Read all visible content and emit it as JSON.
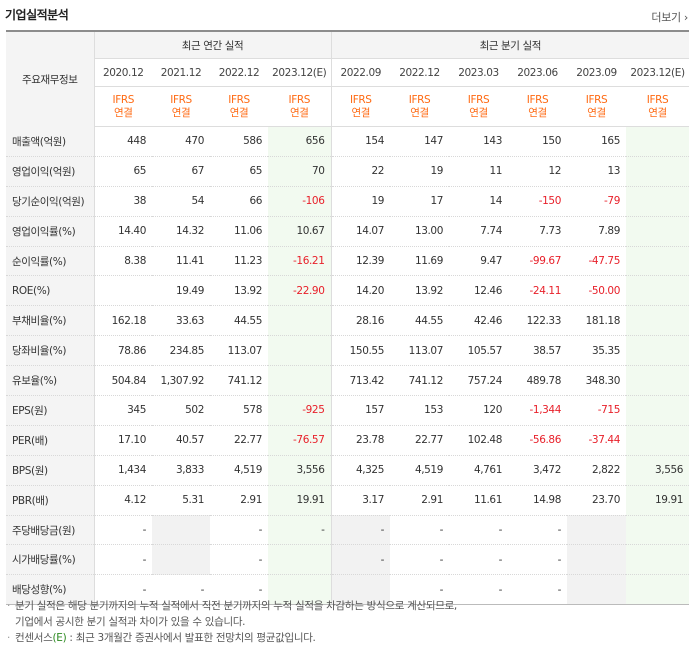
{
  "section_title": "기업실적분석",
  "more_label": "더보기",
  "more_icon": "chevron-right-icon",
  "row_header_label": "주요재무정보",
  "annual_header": "최근 연간 실적",
  "quarter_header": "최근 분기 실적",
  "periods": [
    {
      "label": "2020.12",
      "type": "annual"
    },
    {
      "label": "2021.12",
      "type": "annual"
    },
    {
      "label": "2022.12",
      "type": "annual"
    },
    {
      "label": "2023.12(E)",
      "type": "annual",
      "estimate": true
    },
    {
      "label": "2022.09",
      "type": "quarter"
    },
    {
      "label": "2022.12",
      "type": "quarter"
    },
    {
      "label": "2023.03",
      "type": "quarter"
    },
    {
      "label": "2023.06",
      "type": "quarter"
    },
    {
      "label": "2023.09",
      "type": "quarter"
    },
    {
      "label": "2023.12(E)",
      "type": "quarter",
      "estimate": true
    }
  ],
  "basis_line1": "IFRS",
  "basis_line2": "연결",
  "rows": [
    {
      "label": "매출액(억원)",
      "values": [
        "448",
        "470",
        "586",
        "656",
        "154",
        "147",
        "143",
        "150",
        "165",
        ""
      ]
    },
    {
      "label": "영업이익(억원)",
      "values": [
        "65",
        "67",
        "65",
        "70",
        "22",
        "19",
        "11",
        "12",
        "13",
        ""
      ]
    },
    {
      "label": "당기순이익(억원)",
      "values": [
        "38",
        "54",
        "66",
        "-106",
        "19",
        "17",
        "14",
        "-150",
        "-79",
        ""
      ]
    },
    {
      "label": "영업이익률(%)",
      "values": [
        "14.40",
        "14.32",
        "11.06",
        "10.67",
        "14.07",
        "13.00",
        "7.74",
        "7.73",
        "7.89",
        ""
      ]
    },
    {
      "label": "순이익률(%)",
      "values": [
        "8.38",
        "11.41",
        "11.23",
        "-16.21",
        "12.39",
        "11.69",
        "9.47",
        "-99.67",
        "-47.75",
        ""
      ]
    },
    {
      "label": "ROE(%)",
      "values": [
        "",
        "19.49",
        "13.92",
        "-22.90",
        "14.20",
        "13.92",
        "12.46",
        "-24.11",
        "-50.00",
        ""
      ]
    },
    {
      "label": "부채비율(%)",
      "values": [
        "162.18",
        "33.63",
        "44.55",
        "",
        "28.16",
        "44.55",
        "42.46",
        "122.33",
        "181.18",
        ""
      ]
    },
    {
      "label": "당좌비율(%)",
      "values": [
        "78.86",
        "234.85",
        "113.07",
        "",
        "150.55",
        "113.07",
        "105.57",
        "38.57",
        "35.35",
        ""
      ]
    },
    {
      "label": "유보율(%)",
      "values": [
        "504.84",
        "1,307.92",
        "741.12",
        "",
        "713.42",
        "741.12",
        "757.24",
        "489.78",
        "348.30",
        ""
      ]
    },
    {
      "label": "EPS(원)",
      "values": [
        "345",
        "502",
        "578",
        "-925",
        "157",
        "153",
        "120",
        "-1,344",
        "-715",
        ""
      ]
    },
    {
      "label": "PER(배)",
      "values": [
        "17.10",
        "40.57",
        "22.77",
        "-76.57",
        "23.78",
        "22.77",
        "102.48",
        "-56.86",
        "-37.44",
        ""
      ]
    },
    {
      "label": "BPS(원)",
      "values": [
        "1,434",
        "3,833",
        "4,519",
        "3,556",
        "4,325",
        "4,519",
        "4,761",
        "3,472",
        "2,822",
        "3,556"
      ]
    },
    {
      "label": "PBR(배)",
      "values": [
        "4.12",
        "5.31",
        "2.91",
        "19.91",
        "3.17",
        "2.91",
        "11.61",
        "14.98",
        "23.70",
        "19.91"
      ]
    },
    {
      "label": "주당배당금(원)",
      "values": [
        "-",
        "",
        "-",
        "-",
        "-",
        "-",
        "-",
        "-",
        "",
        ""
      ]
    },
    {
      "label": "시가배당률(%)",
      "values": [
        "-",
        "",
        "-",
        "",
        "-",
        "-",
        "-",
        "-",
        "",
        ""
      ]
    },
    {
      "label": "배당성향(%)",
      "values": [
        "-",
        "-",
        "-",
        "",
        "",
        "-",
        "-",
        "-",
        "",
        ""
      ]
    }
  ],
  "shaded_cells": [
    [
      13,
      1
    ],
    [
      14,
      1
    ],
    [
      13,
      8
    ],
    [
      14,
      8
    ],
    [
      15,
      8
    ],
    [
      15,
      4
    ],
    [
      13,
      4
    ],
    [
      14,
      4
    ]
  ],
  "notes": [
    "분기 실적은 해당 분기까지의 누적 실적에서 직전 분기까지의 누적 실적을 차감하는 방식으로 계산되므로,",
    "기업에서 공시한 분기 실적과 차이가 있을 수 있습니다.",
    "컨센서스(E) : 최근 3개월간 증권사에서 발표한 전망치의 평균값입니다."
  ],
  "notes_bullet": "·",
  "colors": {
    "basis_orange": "#ff6a13",
    "negative_red": "#e8202a",
    "estimate_bg": "#f2faf0",
    "header_bg": "#f4f4f4",
    "consensus_green": "#2e8b22"
  }
}
